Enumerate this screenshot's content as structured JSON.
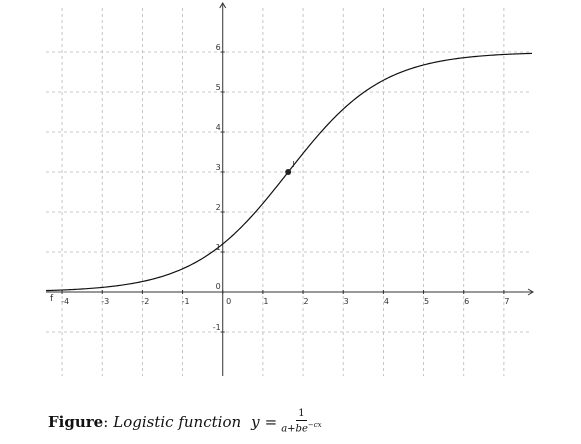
{
  "chart_data": {
    "type": "line",
    "function_label": "f",
    "point_label": "I",
    "xlim": [
      -4.4,
      7.7
    ],
    "ylim": [
      -2.1,
      7.1
    ],
    "x_ticks": [
      -4,
      -3,
      -2,
      -1,
      0,
      1,
      2,
      3,
      4,
      5,
      6,
      7
    ],
    "y_ticks": [
      -1,
      0,
      1,
      2,
      3,
      4,
      5,
      6
    ],
    "grid": true,
    "grid_style": "dashed",
    "curve": {
      "formula": "y = L / (1 + b·e^(-c·x))",
      "L": 6,
      "b": 4,
      "c": 0.85
    },
    "points": [
      {
        "name": "I",
        "x": 1.63,
        "y": 3.0
      }
    ]
  },
  "caption": {
    "bold": "Figure",
    "colon": ":",
    "italic": "Logistic function",
    "eq_lhs": "y",
    "eq_sign": "=",
    "frac_num": "1",
    "frac_den_base": "a+be",
    "frac_den_exp": "−cx"
  },
  "colors": {
    "grid": "#b8b8b8",
    "axis": "#333333",
    "curve": "#111111",
    "point": "#222222"
  }
}
